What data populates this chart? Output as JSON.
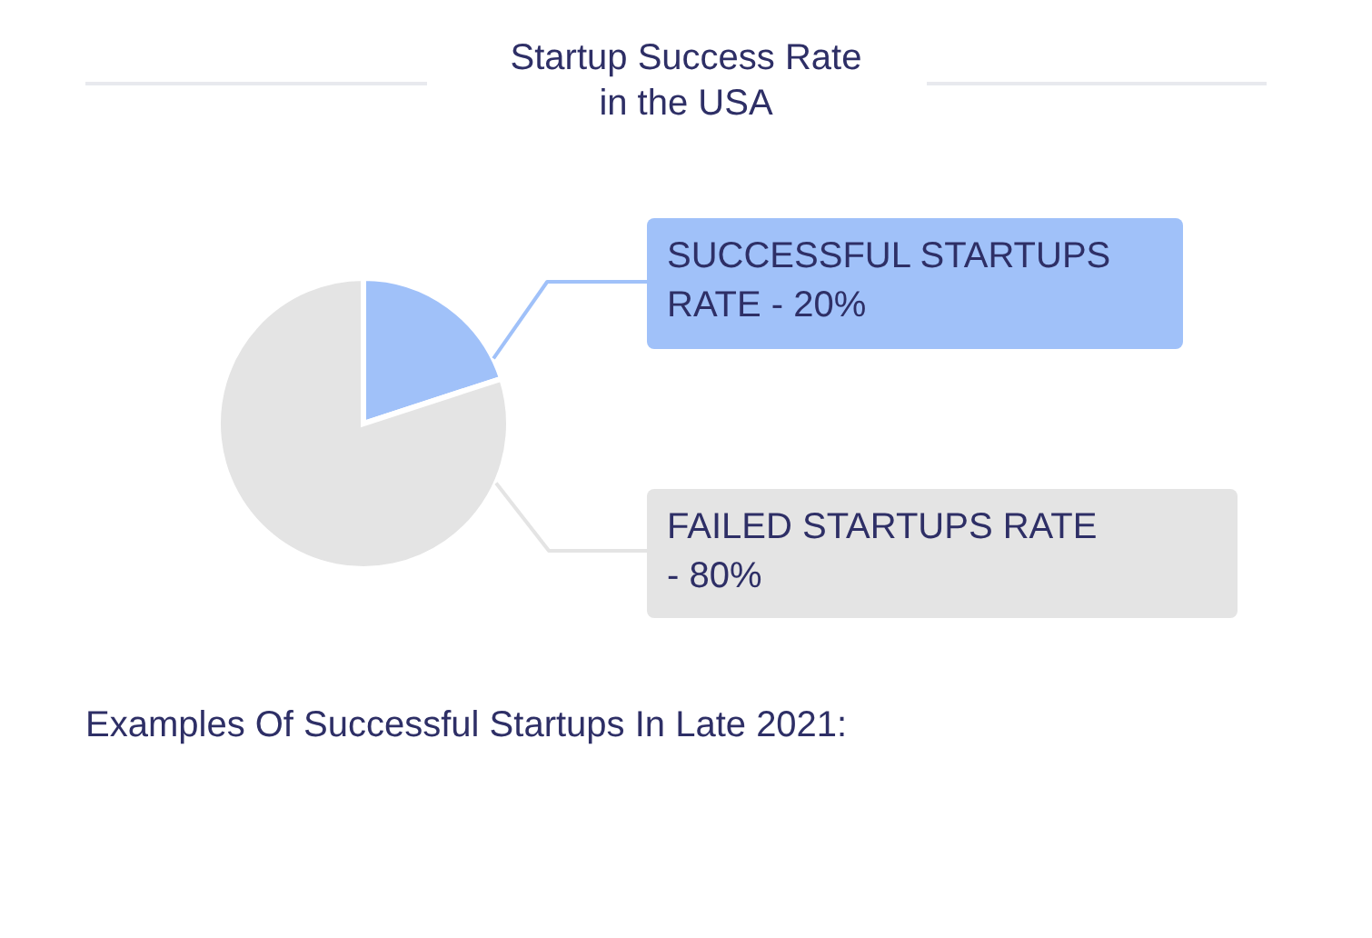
{
  "chart_data": {
    "type": "pie",
    "title": "Startup Success Rate in the USA",
    "categories": [
      "SUCCESSFUL STARTUPS RATE - 20%",
      "FAILED STARTUPS RATE - 80%"
    ],
    "values": [
      20,
      80
    ],
    "colors": [
      "#a0c1f9",
      "#e4e4e4"
    ],
    "annotations": [
      "Examples Of Successful Startups In Late 2021:"
    ]
  }
}
